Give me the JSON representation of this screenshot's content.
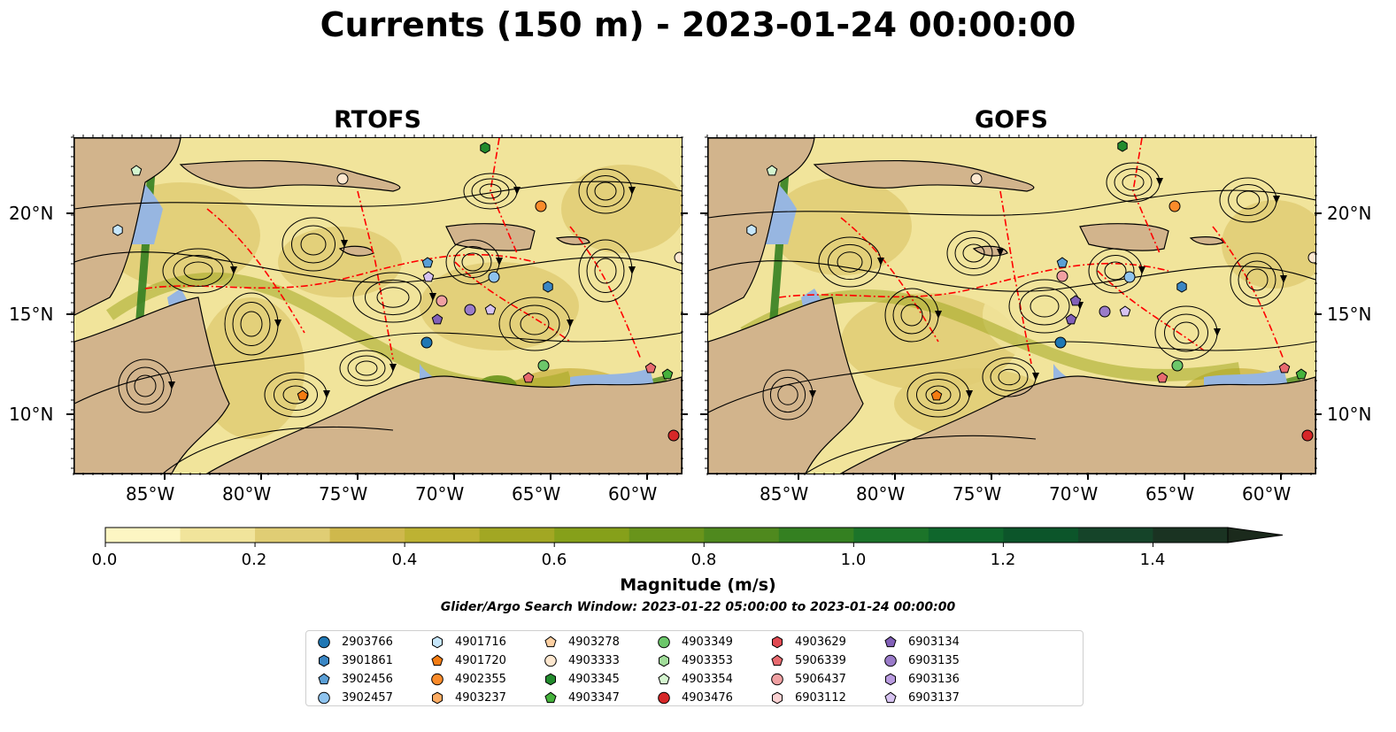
{
  "title": "Currents (150 m) - 2023-01-24 00:00:00",
  "panels": [
    {
      "title": "RTOFS"
    },
    {
      "title": "GOFS"
    }
  ],
  "axes": {
    "lon_labels": [
      "85°W",
      "80°W",
      "75°W",
      "70°W",
      "65°W",
      "60°W"
    ],
    "lat_labels": [
      "20°N",
      "15°N",
      "10°N"
    ],
    "lon_range": [
      -89.5,
      -58.0
    ],
    "lat_range": [
      7.0,
      24.0
    ]
  },
  "colorbar": {
    "label": "Magnitude (m/s)",
    "ticks": [
      "0.0",
      "0.2",
      "0.4",
      "0.6",
      "0.8",
      "1.0",
      "1.2",
      "1.4"
    ],
    "range": [
      0.0,
      1.5
    ],
    "extend": "max",
    "colors": [
      "#fdf6c3",
      "#f1e49b",
      "#e0cd74",
      "#cfb84c",
      "#bdb233",
      "#a2a723",
      "#86a01a",
      "#69941b",
      "#4f891e",
      "#348021",
      "#1c7429",
      "#0f662c",
      "#0c552a",
      "#154429",
      "#1a3322",
      "#1b2a1c"
    ]
  },
  "search_window": "Glider/Argo Search Window: 2023-01-22 05:00:00 to 2023-01-24 00:00:00",
  "colors": {
    "land": "#d2b48c",
    "shallow_water": "#97b6e1",
    "eez_boundary": "#ff0000"
  },
  "legend": [
    {
      "id": "2903766",
      "marker": "circle",
      "color": "#1f77b4"
    },
    {
      "id": "3901861",
      "marker": "hexagon",
      "color": "#3a86c4"
    },
    {
      "id": "3902456",
      "marker": "pentagon",
      "color": "#5a9fd6"
    },
    {
      "id": "3902457",
      "marker": "circle",
      "color": "#8ec3ee"
    },
    {
      "id": "4901716",
      "marker": "hexagon",
      "color": "#c6e6fb"
    },
    {
      "id": "4901720",
      "marker": "pentagon",
      "color": "#f47c12"
    },
    {
      "id": "4902355",
      "marker": "circle",
      "color": "#fb8b2a"
    },
    {
      "id": "4903237",
      "marker": "hexagon",
      "color": "#fdac63"
    },
    {
      "id": "4903278",
      "marker": "pentagon",
      "color": "#fdd0a2"
    },
    {
      "id": "4903333",
      "marker": "circle",
      "color": "#fde7cf"
    },
    {
      "id": "4903345",
      "marker": "hexagon",
      "color": "#228b2d"
    },
    {
      "id": "4903347",
      "marker": "pentagon",
      "color": "#45b23c"
    },
    {
      "id": "4903349",
      "marker": "circle",
      "color": "#6cc76a"
    },
    {
      "id": "4903353",
      "marker": "hexagon",
      "color": "#a1dd9a"
    },
    {
      "id": "4903354",
      "marker": "pentagon",
      "color": "#d4f5cf"
    },
    {
      "id": "4903476",
      "marker": "circle",
      "color": "#d62728"
    },
    {
      "id": "4903629",
      "marker": "hexagon",
      "color": "#e04a52"
    },
    {
      "id": "5906339",
      "marker": "pentagon",
      "color": "#e86a6f"
    },
    {
      "id": "5906437",
      "marker": "circle",
      "color": "#f0a0a2"
    },
    {
      "id": "6903112",
      "marker": "hexagon",
      "color": "#fbd1d2"
    },
    {
      "id": "6903134",
      "marker": "pentagon",
      "color": "#8260b8"
    },
    {
      "id": "6903135",
      "marker": "circle",
      "color": "#9a7bc9"
    },
    {
      "id": "6903136",
      "marker": "hexagon",
      "color": "#b99be0"
    },
    {
      "id": "6903137",
      "marker": "pentagon",
      "color": "#d7c3f1"
    }
  ]
}
